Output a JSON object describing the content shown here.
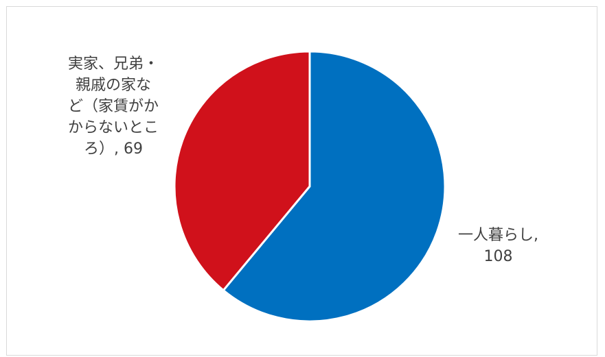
{
  "chart_data": {
    "type": "pie",
    "categories": [
      "一人暮らし",
      "実家、兄弟・親戚の家など（家賃がかからないところ）"
    ],
    "values": [
      108,
      69
    ],
    "colors": [
      "#0070c0",
      "#d0111b"
    ],
    "start_angle_deg": 0,
    "direction": "clockwise",
    "legend": "none",
    "labels": [
      {
        "category": "一人暮らし",
        "lines": [
          "一人暮らし,",
          "108"
        ]
      },
      {
        "category": "実家、兄弟・親戚の家など（家賃がかからないところ）",
        "lines": [
          "実家、兄弟・",
          "親戚の家な",
          "ど（家賃がか",
          "からないとこ",
          "ろ）, 69"
        ]
      }
    ]
  }
}
